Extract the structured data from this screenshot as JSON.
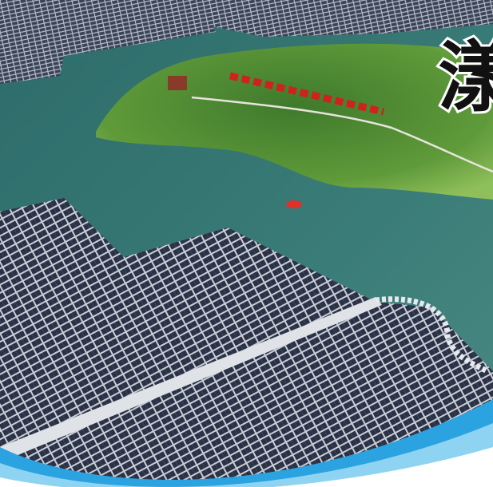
{
  "headline_char": "漾"
}
